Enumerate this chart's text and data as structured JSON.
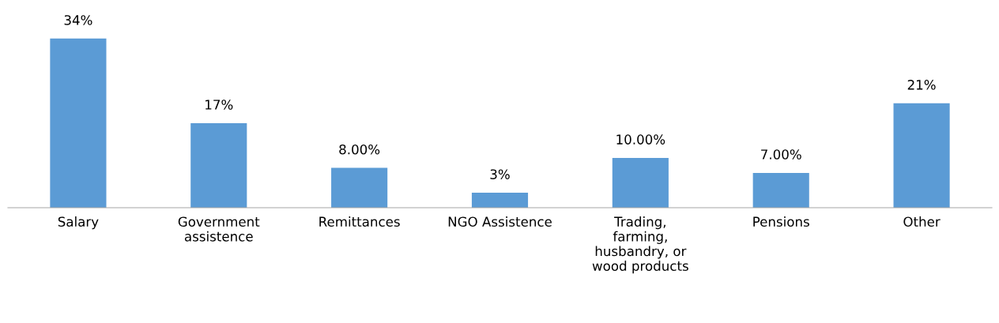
{
  "chart_data": {
    "type": "bar",
    "categories": [
      "Salary",
      "Government\nassistence",
      "Remittances",
      "NGO Assistence",
      "Trading,\nfarming,\nhusbandry, or\nwood products",
      "Pensions",
      "Other"
    ],
    "values": [
      34,
      17,
      8,
      3,
      10,
      7,
      21
    ],
    "value_labels": [
      "34%",
      "17%",
      "8.00%",
      "3%",
      "10.00%",
      "7.00%",
      "21%"
    ],
    "color": "#5b9bd5",
    "grid": false,
    "legend": false,
    "tick_labels": "x"
  }
}
